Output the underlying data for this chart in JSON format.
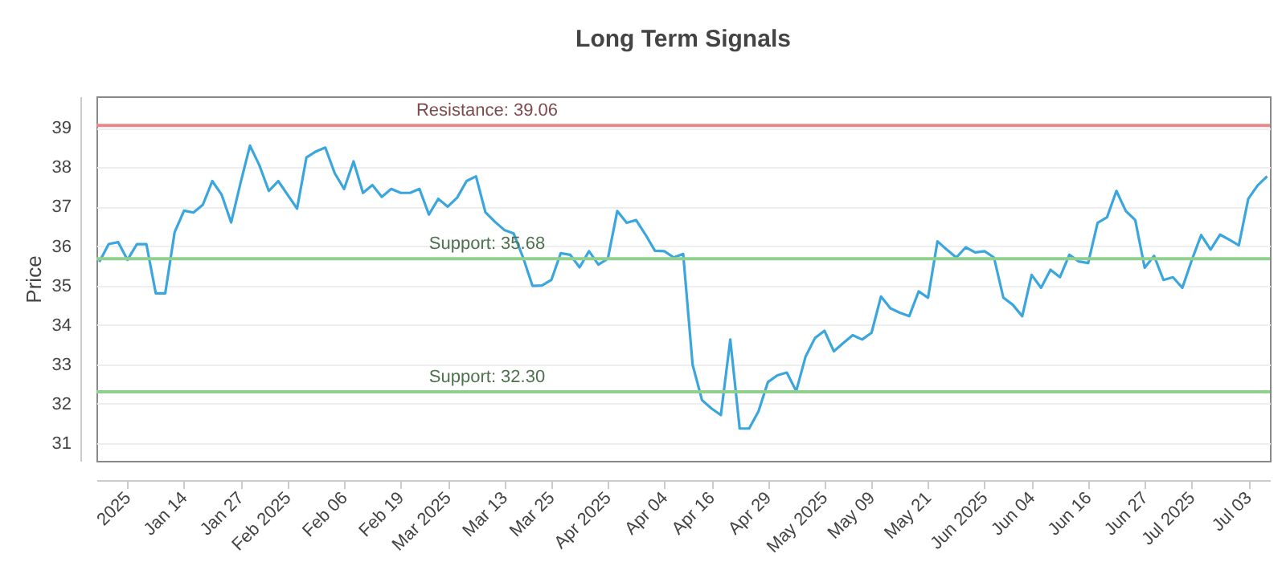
{
  "chart_data": {
    "type": "line",
    "title": "Long Term Signals",
    "ylabel": "Price",
    "categories": [
      null,
      null,
      null,
      "2025",
      null,
      null,
      null,
      null,
      null,
      "Jan 14",
      null,
      null,
      null,
      null,
      null,
      "Jan 27",
      null,
      null,
      null,
      null,
      "Feb 2025",
      null,
      null,
      null,
      null,
      null,
      "Feb 06",
      null,
      null,
      null,
      null,
      null,
      "Feb 19",
      null,
      null,
      null,
      null,
      "Mar 2025",
      null,
      null,
      null,
      null,
      null,
      "Mar 13",
      null,
      null,
      null,
      null,
      "Mar 25",
      null,
      null,
      null,
      null,
      null,
      "Apr 2025",
      null,
      null,
      null,
      null,
      null,
      "Apr 04",
      null,
      null,
      null,
      null,
      "Apr 16",
      null,
      null,
      null,
      null,
      null,
      "Apr 29",
      null,
      null,
      null,
      null,
      null,
      "May 2025",
      null,
      null,
      null,
      null,
      "May 09",
      null,
      null,
      null,
      null,
      null,
      "May 21",
      null,
      null,
      null,
      null,
      null,
      "Jun 2025",
      null,
      null,
      null,
      null,
      "Jun 04",
      null,
      null,
      null,
      null,
      null,
      "Jun 16",
      null,
      null,
      null,
      null,
      null,
      "Jun 27",
      null,
      null,
      null,
      null,
      "Jul 2025",
      null,
      null,
      null,
      null,
      null,
      "Jul 03",
      null,
      null
    ],
    "series": [
      {
        "color": "#3aa6dd",
        "values": [
          35.6,
          36.05,
          36.1,
          35.65,
          36.05,
          36.05,
          34.8,
          34.8,
          36.35,
          36.9,
          36.85,
          37.05,
          37.65,
          37.3,
          36.6,
          37.6,
          38.55,
          38.05,
          37.4,
          37.65,
          37.3,
          36.95,
          38.25,
          38.4,
          38.5,
          37.85,
          37.45,
          38.15,
          37.35,
          37.55,
          37.25,
          37.45,
          37.35,
          37.35,
          37.45,
          36.8,
          37.2,
          37.0,
          37.23,
          37.65,
          37.77,
          36.86,
          36.62,
          36.41,
          36.32,
          35.71,
          34.99,
          35.0,
          35.14,
          35.82,
          35.78,
          35.46,
          35.87,
          35.53,
          35.68,
          36.89,
          36.59,
          36.66,
          36.29,
          35.88,
          35.87,
          35.71,
          35.8,
          32.99,
          32.09,
          31.88,
          31.71,
          33.63,
          31.37,
          31.37,
          31.81,
          32.55,
          32.72,
          32.79,
          32.32,
          33.2,
          33.67,
          33.85,
          33.33,
          33.54,
          33.74,
          33.63,
          33.8,
          34.72,
          34.42,
          34.31,
          34.22,
          34.85,
          34.69,
          36.12,
          35.91,
          35.71,
          35.97,
          35.84,
          35.87,
          35.71,
          34.69,
          34.51,
          34.22,
          35.27,
          34.94,
          35.4,
          35.21,
          35.78,
          35.61,
          35.57,
          36.59,
          36.73,
          37.4,
          36.89,
          36.66,
          35.45,
          35.75,
          35.14,
          35.21,
          34.94,
          35.64,
          36.28,
          35.91,
          36.29,
          36.16,
          36.02,
          37.2,
          37.54,
          37.77
        ]
      }
    ],
    "ylim": [
      30.55,
      39.8
    ],
    "yticks": [
      31,
      32,
      33,
      34,
      35,
      36,
      37,
      38,
      39
    ],
    "grid": "y",
    "marker": "none",
    "line_style": "solid",
    "ref_lines": [
      {
        "axis": "y",
        "value": 39.06,
        "label": "Resistance: 39.06",
        "color": "#e58a8a"
      },
      {
        "axis": "y",
        "value": 35.68,
        "label": "Support: 35.68",
        "color": "#8fd08f"
      },
      {
        "axis": "y",
        "value": 32.3,
        "label": "Support: 32.30",
        "color": "#8fd08f"
      }
    ]
  }
}
